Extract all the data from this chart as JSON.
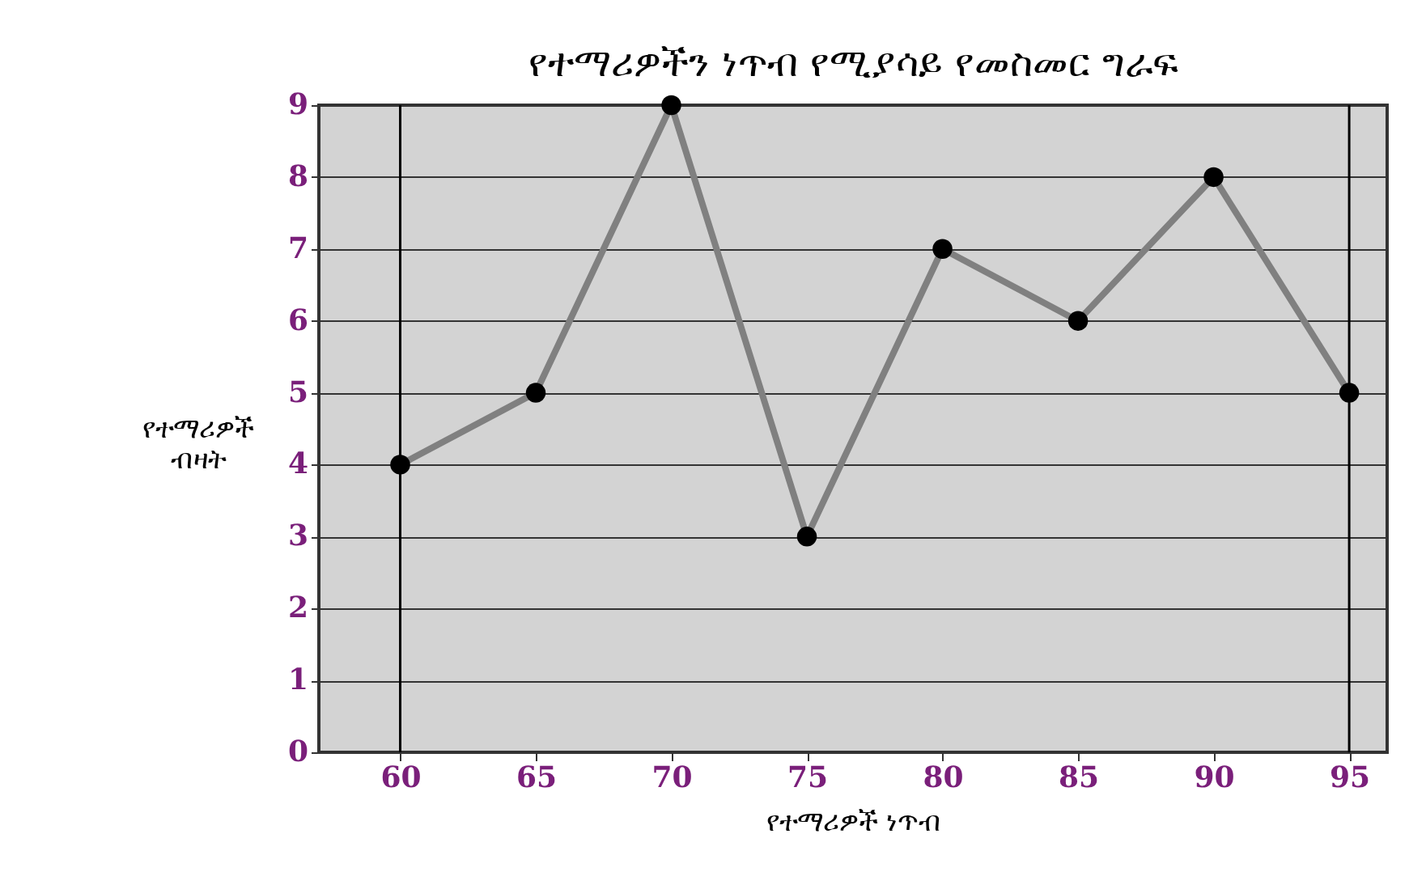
{
  "chart_data": {
    "type": "line",
    "title": "የተማሪዎችን ነጥብ የሚያሳይ የመስመር ግራፍ",
    "xlabel": "የተማሪዎች ነጥብ",
    "ylabel": "የተማሪዎች ብዛት",
    "x": [
      60,
      65,
      70,
      75,
      80,
      85,
      90,
      95
    ],
    "series": [
      {
        "color": "#808080",
        "values": [
          4,
          5,
          9,
          3,
          7,
          6,
          8,
          5
        ]
      }
    ],
    "xlim": [
      57,
      96.4
    ],
    "xticks": [
      60,
      65,
      70,
      75,
      80,
      85,
      90,
      95
    ],
    "ylim": [
      0,
      9
    ],
    "yticks": [
      0,
      1,
      2,
      3,
      4,
      5,
      6,
      7,
      8,
      9
    ],
    "grid": "y",
    "marker": "circle",
    "line_style": "solid",
    "ref_lines": [
      {
        "axis": "x",
        "value": 60,
        "color": "#000000"
      },
      {
        "axis": "x",
        "value": 95,
        "color": "#000000"
      }
    ]
  }
}
